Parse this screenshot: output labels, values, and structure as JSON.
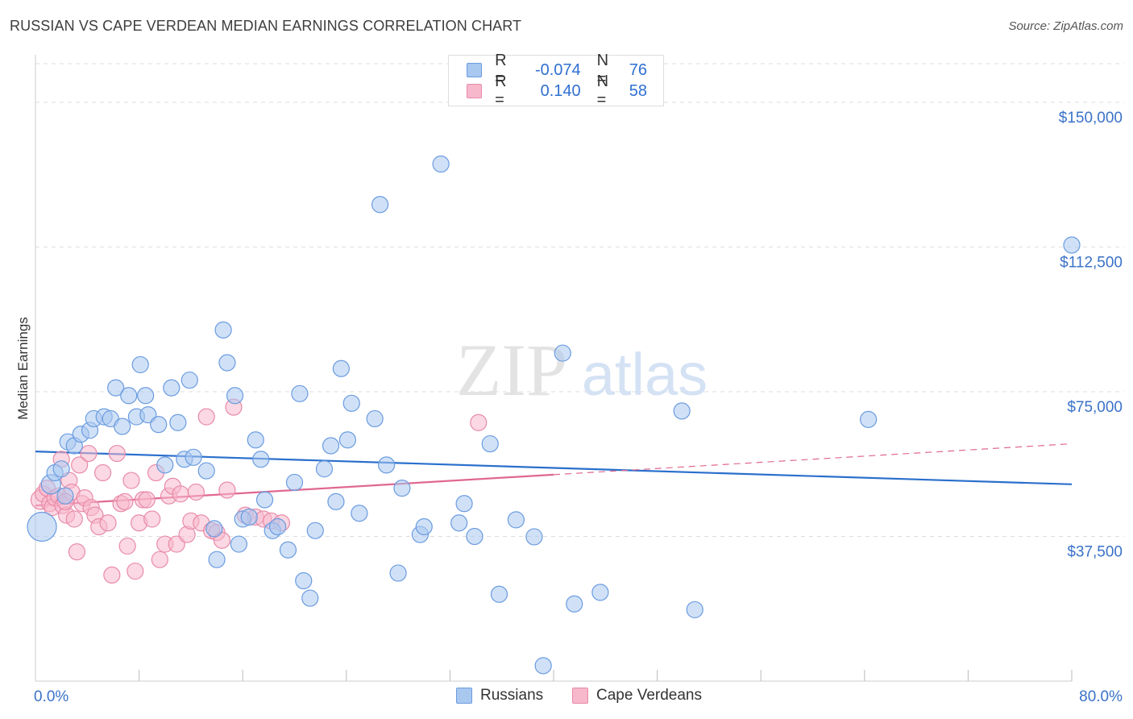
{
  "title": "RUSSIAN VS CAPE VERDEAN MEDIAN EARNINGS CORRELATION CHART",
  "source": "Source: ZipAtlas.com",
  "watermark": {
    "zip": "ZIP",
    "atlas": "atlas"
  },
  "legend": {
    "russians": {
      "r_label": "R =",
      "r_value": "-0.074",
      "n_label": "N =",
      "n_value": "76"
    },
    "cape_verdeans": {
      "r_label": "R =",
      "r_value": "0.140",
      "n_label": "N =",
      "n_value": "58"
    }
  },
  "colors": {
    "russians_fill": "#a9c8f0",
    "russians_stroke": "#6a9be0",
    "russians_line": "#2a6fcc",
    "cape_fill": "#f7b8cc",
    "cape_stroke": "#e88aa8",
    "cape_line": "#e06890",
    "tick_label": "#3a72c8",
    "grid": "#dddddd"
  },
  "chart_data": {
    "type": "scatter",
    "title": "RUSSIAN VS CAPE VERDEAN MEDIAN EARNINGS CORRELATION CHART",
    "xlabel": "",
    "ylabel": "Median Earnings",
    "xlim": [
      0,
      80
    ],
    "ylim": [
      0,
      160000
    ],
    "x_tick_labels": [
      "0.0%",
      "80.0%"
    ],
    "y_ticks": [
      37500,
      75000,
      112500,
      150000
    ],
    "y_tick_labels": [
      "$37,500",
      "$75,000",
      "$112,500",
      "$150,000"
    ],
    "grid": true,
    "legend_position": "top-center",
    "series": [
      {
        "name": "Russians",
        "points": [
          [
            0.5,
            40000,
            18
          ],
          [
            1.2,
            51000,
            12
          ],
          [
            1.5,
            54000,
            10
          ],
          [
            2.0,
            55000,
            10
          ],
          [
            2.3,
            48000,
            10
          ],
          [
            2.5,
            62000,
            10
          ],
          [
            3.0,
            61000,
            10
          ],
          [
            3.5,
            64000,
            10
          ],
          [
            4.2,
            65000,
            10
          ],
          [
            4.5,
            68000,
            10
          ],
          [
            5.3,
            68500,
            10
          ],
          [
            5.8,
            68000,
            10
          ],
          [
            6.2,
            76000,
            10
          ],
          [
            6.7,
            66000,
            10
          ],
          [
            7.2,
            74000,
            10
          ],
          [
            7.8,
            68500,
            10
          ],
          [
            8.1,
            82000,
            10
          ],
          [
            8.5,
            74000,
            10
          ],
          [
            8.7,
            69000,
            10
          ],
          [
            9.5,
            66500,
            10
          ],
          [
            10.0,
            56000,
            10
          ],
          [
            10.5,
            76000,
            10
          ],
          [
            11.0,
            67000,
            10
          ],
          [
            11.5,
            57500,
            10
          ],
          [
            11.9,
            78000,
            10
          ],
          [
            12.2,
            58000,
            10
          ],
          [
            13.2,
            54500,
            10
          ],
          [
            13.8,
            39500,
            10
          ],
          [
            14.0,
            31500,
            10
          ],
          [
            14.5,
            91000,
            10
          ],
          [
            14.8,
            82500,
            10
          ],
          [
            15.4,
            74000,
            10
          ],
          [
            15.7,
            35500,
            10
          ],
          [
            16.0,
            42000,
            10
          ],
          [
            16.5,
            42500,
            10
          ],
          [
            17.0,
            62500,
            10
          ],
          [
            17.4,
            57500,
            10
          ],
          [
            17.7,
            47000,
            10
          ],
          [
            18.3,
            39000,
            10
          ],
          [
            18.7,
            40000,
            10
          ],
          [
            19.5,
            34000,
            10
          ],
          [
            20.0,
            51500,
            10
          ],
          [
            20.4,
            74500,
            10
          ],
          [
            20.7,
            26000,
            10
          ],
          [
            21.2,
            21500,
            10
          ],
          [
            21.6,
            39000,
            10
          ],
          [
            22.3,
            55000,
            10
          ],
          [
            22.8,
            61000,
            10
          ],
          [
            23.2,
            46500,
            10
          ],
          [
            23.6,
            81000,
            10
          ],
          [
            24.1,
            62500,
            10
          ],
          [
            24.4,
            72000,
            10
          ],
          [
            25.0,
            43500,
            10
          ],
          [
            26.2,
            68000,
            10
          ],
          [
            26.6,
            123500,
            10
          ],
          [
            27.1,
            56000,
            10
          ],
          [
            28.0,
            28000,
            10
          ],
          [
            28.3,
            50000,
            10
          ],
          [
            29.7,
            38000,
            10
          ],
          [
            30.0,
            40000,
            10
          ],
          [
            31.3,
            134000,
            10
          ],
          [
            32.7,
            41000,
            10
          ],
          [
            33.1,
            46000,
            10
          ],
          [
            33.9,
            37500,
            10
          ],
          [
            35.1,
            61500,
            10
          ],
          [
            35.8,
            22500,
            10
          ],
          [
            37.1,
            41800,
            10
          ],
          [
            38.5,
            37400,
            10
          ],
          [
            39.2,
            4000,
            10
          ],
          [
            40.7,
            85000,
            10
          ],
          [
            41.6,
            20000,
            10
          ],
          [
            43.6,
            23000,
            10
          ],
          [
            49.9,
            70000,
            10
          ],
          [
            50.9,
            18500,
            10
          ],
          [
            64.3,
            67800,
            10
          ],
          [
            80.0,
            113000,
            10
          ]
        ]
      },
      {
        "name": "Cape Verdeans",
        "points": [
          [
            0.4,
            47000,
            12
          ],
          [
            0.6,
            48500,
            10
          ],
          [
            0.9,
            50000,
            10
          ],
          [
            1.1,
            46000,
            10
          ],
          [
            1.3,
            45000,
            10
          ],
          [
            1.5,
            47500,
            10
          ],
          [
            1.8,
            48000,
            10
          ],
          [
            2.0,
            57500,
            10
          ],
          [
            2.1,
            45500,
            10
          ],
          [
            2.4,
            43000,
            10
          ],
          [
            2.6,
            52000,
            10
          ],
          [
            2.8,
            49000,
            10
          ],
          [
            3.0,
            42000,
            10
          ],
          [
            3.2,
            33500,
            10
          ],
          [
            3.4,
            56000,
            10
          ],
          [
            3.6,
            46000,
            10
          ],
          [
            3.8,
            47500,
            10
          ],
          [
            4.1,
            59000,
            10
          ],
          [
            4.3,
            45000,
            10
          ],
          [
            4.6,
            43000,
            10
          ],
          [
            4.9,
            40000,
            10
          ],
          [
            5.2,
            54000,
            10
          ],
          [
            5.6,
            41000,
            10
          ],
          [
            5.9,
            27500,
            10
          ],
          [
            6.3,
            59000,
            10
          ],
          [
            6.6,
            46000,
            10
          ],
          [
            6.9,
            46500,
            10
          ],
          [
            7.1,
            35000,
            10
          ],
          [
            7.4,
            52000,
            10
          ],
          [
            7.7,
            28500,
            10
          ],
          [
            8.0,
            41000,
            10
          ],
          [
            8.3,
            47000,
            10
          ],
          [
            8.6,
            47000,
            10
          ],
          [
            9.0,
            42000,
            10
          ],
          [
            9.3,
            54000,
            10
          ],
          [
            9.6,
            31500,
            10
          ],
          [
            10.0,
            35500,
            10
          ],
          [
            10.3,
            48000,
            10
          ],
          [
            10.6,
            50500,
            10
          ],
          [
            10.9,
            35500,
            10
          ],
          [
            11.2,
            48500,
            10
          ],
          [
            11.7,
            38000,
            10
          ],
          [
            12.0,
            41500,
            10
          ],
          [
            12.4,
            49000,
            10
          ],
          [
            12.8,
            41000,
            10
          ],
          [
            13.2,
            68500,
            10
          ],
          [
            13.6,
            39000,
            10
          ],
          [
            14.0,
            38500,
            10
          ],
          [
            14.4,
            36500,
            10
          ],
          [
            14.8,
            49500,
            10
          ],
          [
            15.3,
            71000,
            10
          ],
          [
            16.2,
            43000,
            10
          ],
          [
            17.0,
            42500,
            10
          ],
          [
            17.6,
            42000,
            10
          ],
          [
            18.2,
            41500,
            10
          ],
          [
            19.0,
            41000,
            10
          ],
          [
            34.2,
            67000,
            10
          ],
          [
            2.3,
            46500,
            10
          ]
        ]
      }
    ],
    "trendlines": [
      {
        "series": "Russians",
        "from": [
          0,
          59500
        ],
        "to": [
          80,
          51000
        ],
        "style": "solid"
      },
      {
        "series": "Cape Verdeans",
        "from": [
          0,
          45500
        ],
        "to": [
          40,
          53500
        ],
        "style": "solid"
      },
      {
        "series": "Cape Verdeans",
        "from": [
          40,
          53500
        ],
        "to": [
          80,
          61500
        ],
        "style": "dashed"
      }
    ]
  },
  "bottom_legend": {
    "russians": "Russians",
    "cape_verdeans": "Cape Verdeans"
  }
}
